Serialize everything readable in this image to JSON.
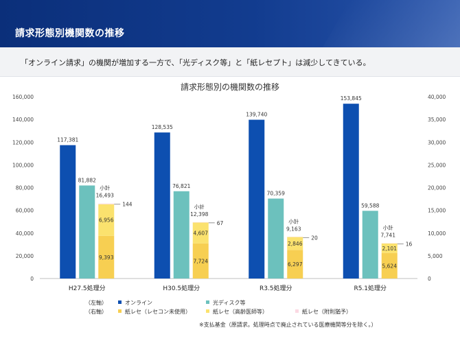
{
  "header": {
    "title": "請求形態別機関数の推移"
  },
  "summary": "「オンライン請求」の機関が増加する一方で、「光ディスク等」と「紙レセプト」は減少してきている。",
  "chart_data": {
    "type": "bar",
    "title": "請求形態別の機関数の推移",
    "categories": [
      "H27.5処理分",
      "H30.5処理分",
      "R3.5処理分",
      "R5.1処理分"
    ],
    "left_axis": {
      "ticks": [
        "0",
        "20,000",
        "40,000",
        "60,000",
        "80,000",
        "100,000",
        "120,000",
        "140,000",
        "160,000"
      ],
      "ylim": [
        0,
        160000
      ]
    },
    "right_axis": {
      "ticks": [
        "0",
        "5,000",
        "10,000",
        "15,000",
        "20,000",
        "25,000",
        "30,000",
        "35,000",
        "40,000"
      ],
      "ylim": [
        0,
        40000
      ]
    },
    "series": [
      {
        "name": "オンライン",
        "axis": "left",
        "color": "#0d4fb0",
        "values": [
          117381,
          128535,
          139740,
          153845
        ],
        "labels": [
          "117,381",
          "128,535",
          "139,740",
          "153,845"
        ]
      },
      {
        "name": "光ディスク等",
        "axis": "left",
        "color": "#6cc1bd",
        "values": [
          81882,
          76821,
          70359,
          59588
        ],
        "labels": [
          "81,882",
          "76,821",
          "70,359",
          "59,588"
        ]
      },
      {
        "name": "紙レセ（レセコン未使用）",
        "axis": "right",
        "stack": "paper",
        "color": "#f7cf52",
        "values": [
          9393,
          7724,
          6297,
          5624
        ],
        "labels": [
          "9,393",
          "7,724",
          "6,297",
          "5,624"
        ]
      },
      {
        "name": "紙レセ（高齢医師等）",
        "axis": "right",
        "stack": "paper",
        "color": "#fbe26e",
        "values": [
          6956,
          4607,
          2846,
          2101
        ],
        "labels": [
          "6,956",
          "4,607",
          "2,846",
          "2,101"
        ]
      },
      {
        "name": "紙レセ（附則猶予）",
        "axis": "right",
        "stack": "paper",
        "color": "#fbd9e3",
        "values": [
          144,
          67,
          20,
          16
        ],
        "labels": [
          "144",
          "67",
          "20",
          "16"
        ]
      }
    ],
    "subtotal": {
      "label": "小計",
      "values": [
        "16,493",
        "12,398",
        "9,163",
        "7,741"
      ]
    },
    "legend": {
      "left_label": "（左軸）",
      "right_label": "（右軸）",
      "placement": "bottom"
    },
    "footnote": "※支払基金（原請求。処理時点で廃止されている医療機関等分を除く。）",
    "grid": false
  }
}
